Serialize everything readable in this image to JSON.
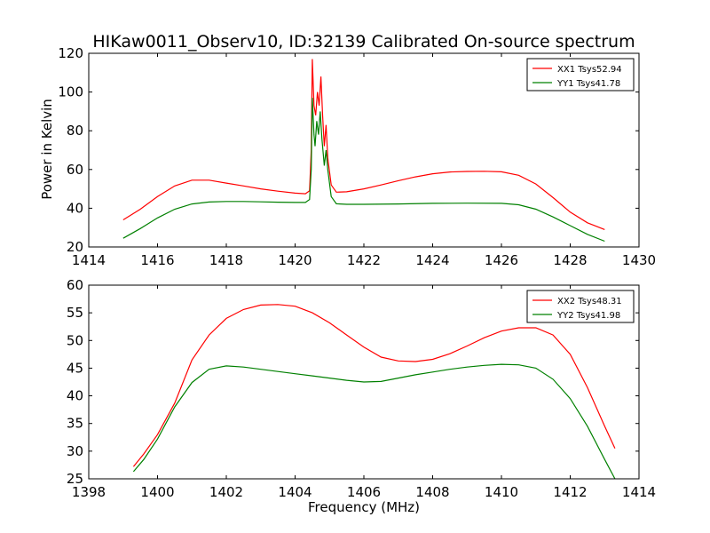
{
  "chart_data": [
    {
      "type": "line",
      "title": "HIKaw0011_Observ10, ID:32139 Calibrated On-source spectrum",
      "xlabel": "",
      "ylabel": "Power in Kelvin",
      "xlim": [
        1414,
        1430
      ],
      "ylim": [
        20,
        120
      ],
      "xticks": [
        1414,
        1416,
        1418,
        1420,
        1422,
        1424,
        1426,
        1428,
        1430
      ],
      "yticks": [
        20,
        40,
        60,
        80,
        100,
        120
      ],
      "grid": false,
      "legend_position": "top-right",
      "series": [
        {
          "name": "XX1 Tsys52.94",
          "color": "#ff0000",
          "points": [
            [
              1415,
              34
            ],
            [
              1415.5,
              39.5
            ],
            [
              1416,
              46
            ],
            [
              1416.5,
              51.5
            ],
            [
              1417,
              54.5
            ],
            [
              1417.5,
              54.5
            ],
            [
              1418,
              53
            ],
            [
              1418.5,
              51.5
            ],
            [
              1419,
              50
            ],
            [
              1419.5,
              48.8
            ],
            [
              1420,
              47.8
            ],
            [
              1420.3,
              47.5
            ],
            [
              1420.42,
              49
            ],
            [
              1420.47,
              70
            ],
            [
              1420.5,
              117
            ],
            [
              1420.55,
              93
            ],
            [
              1420.6,
              88
            ],
            [
              1420.65,
              100
            ],
            [
              1420.7,
              93
            ],
            [
              1420.75,
              108
            ],
            [
              1420.8,
              88
            ],
            [
              1420.85,
              72
            ],
            [
              1420.9,
              83
            ],
            [
              1420.95,
              66
            ],
            [
              1421.05,
              52
            ],
            [
              1421.2,
              48.3
            ],
            [
              1421.5,
              48.5
            ],
            [
              1422,
              50
            ],
            [
              1422.5,
              52
            ],
            [
              1423,
              54.2
            ],
            [
              1423.5,
              56.2
            ],
            [
              1424,
              57.8
            ],
            [
              1424.5,
              58.7
            ],
            [
              1425,
              59
            ],
            [
              1425.5,
              59.1
            ],
            [
              1426,
              58.8
            ],
            [
              1426.5,
              57
            ],
            [
              1427,
              52.5
            ],
            [
              1427.5,
              45.5
            ],
            [
              1428,
              38
            ],
            [
              1428.5,
              32.5
            ],
            [
              1429,
              29
            ]
          ]
        },
        {
          "name": "YY1 Tsys41.78",
          "color": "#008000",
          "points": [
            [
              1415,
              24.5
            ],
            [
              1415.5,
              29.5
            ],
            [
              1416,
              35
            ],
            [
              1416.5,
              39.5
            ],
            [
              1417,
              42.2
            ],
            [
              1417.5,
              43.2
            ],
            [
              1418,
              43.5
            ],
            [
              1418.5,
              43.5
            ],
            [
              1419,
              43.3
            ],
            [
              1419.5,
              43.1
            ],
            [
              1420,
              43
            ],
            [
              1420.3,
              43
            ],
            [
              1420.42,
              44.5
            ],
            [
              1420.47,
              60
            ],
            [
              1420.5,
              97
            ],
            [
              1420.55,
              78
            ],
            [
              1420.58,
              72
            ],
            [
              1420.63,
              85
            ],
            [
              1420.68,
              78
            ],
            [
              1420.73,
              90
            ],
            [
              1420.78,
              76
            ],
            [
              1420.85,
              62
            ],
            [
              1420.9,
              70
            ],
            [
              1420.95,
              60
            ],
            [
              1421.05,
              46
            ],
            [
              1421.2,
              42.3
            ],
            [
              1421.5,
              42
            ],
            [
              1422,
              42
            ],
            [
              1423,
              42.2
            ],
            [
              1424,
              42.5
            ],
            [
              1425,
              42.6
            ],
            [
              1426,
              42.5
            ],
            [
              1426.5,
              41.8
            ],
            [
              1427,
              39.5
            ],
            [
              1427.5,
              35.5
            ],
            [
              1428,
              31
            ],
            [
              1428.5,
              26.5
            ],
            [
              1429,
              23
            ]
          ]
        }
      ]
    },
    {
      "type": "line",
      "title": "",
      "xlabel": "Frequency (MHz)",
      "ylabel": "",
      "xlim": [
        1398,
        1414
      ],
      "ylim": [
        25,
        60
      ],
      "xticks": [
        1398,
        1400,
        1402,
        1404,
        1406,
        1408,
        1410,
        1412,
        1414
      ],
      "yticks": [
        25,
        30,
        35,
        40,
        45,
        50,
        55,
        60
      ],
      "grid": false,
      "legend_position": "top-right",
      "series": [
        {
          "name": "XX2 Tsys48.31",
          "color": "#ff0000",
          "points": [
            [
              1399.3,
              27.2
            ],
            [
              1399.6,
              29.5
            ],
            [
              1400,
              33
            ],
            [
              1400.5,
              38.7
            ],
            [
              1401,
              46.5
            ],
            [
              1401.5,
              51
            ],
            [
              1402,
              54
            ],
            [
              1402.5,
              55.6
            ],
            [
              1403,
              56.4
            ],
            [
              1403.5,
              56.5
            ],
            [
              1404,
              56.2
            ],
            [
              1404.5,
              55
            ],
            [
              1405,
              53.2
            ],
            [
              1405.5,
              51
            ],
            [
              1406,
              48.8
            ],
            [
              1406.5,
              47
            ],
            [
              1407,
              46.3
            ],
            [
              1407.5,
              46.2
            ],
            [
              1408,
              46.6
            ],
            [
              1408.5,
              47.6
            ],
            [
              1409,
              49
            ],
            [
              1409.5,
              50.5
            ],
            [
              1410,
              51.7
            ],
            [
              1410.5,
              52.3
            ],
            [
              1411,
              52.3
            ],
            [
              1411.5,
              51
            ],
            [
              1412,
              47.5
            ],
            [
              1412.5,
              41.5
            ],
            [
              1413,
              34.5
            ],
            [
              1413.3,
              30.5
            ]
          ]
        },
        {
          "name": "YY2 Tsys41.98",
          "color": "#008000",
          "points": [
            [
              1399.3,
              26.3
            ],
            [
              1399.6,
              28.5
            ],
            [
              1400,
              32.2
            ],
            [
              1400.5,
              38
            ],
            [
              1401,
              42.4
            ],
            [
              1401.5,
              44.8
            ],
            [
              1402,
              45.4
            ],
            [
              1402.5,
              45.2
            ],
            [
              1403,
              44.8
            ],
            [
              1403.5,
              44.4
            ],
            [
              1404,
              44
            ],
            [
              1404.5,
              43.6
            ],
            [
              1405,
              43.2
            ],
            [
              1405.5,
              42.8
            ],
            [
              1406,
              42.5
            ],
            [
              1406.5,
              42.6
            ],
            [
              1407,
              43.2
            ],
            [
              1407.5,
              43.8
            ],
            [
              1408,
              44.3
            ],
            [
              1408.5,
              44.8
            ],
            [
              1409,
              45.2
            ],
            [
              1409.5,
              45.5
            ],
            [
              1410,
              45.7
            ],
            [
              1410.5,
              45.6
            ],
            [
              1411,
              45
            ],
            [
              1411.5,
              43
            ],
            [
              1412,
              39.5
            ],
            [
              1412.5,
              34.5
            ],
            [
              1413,
              28.5
            ],
            [
              1413.3,
              25
            ]
          ]
        }
      ]
    }
  ]
}
